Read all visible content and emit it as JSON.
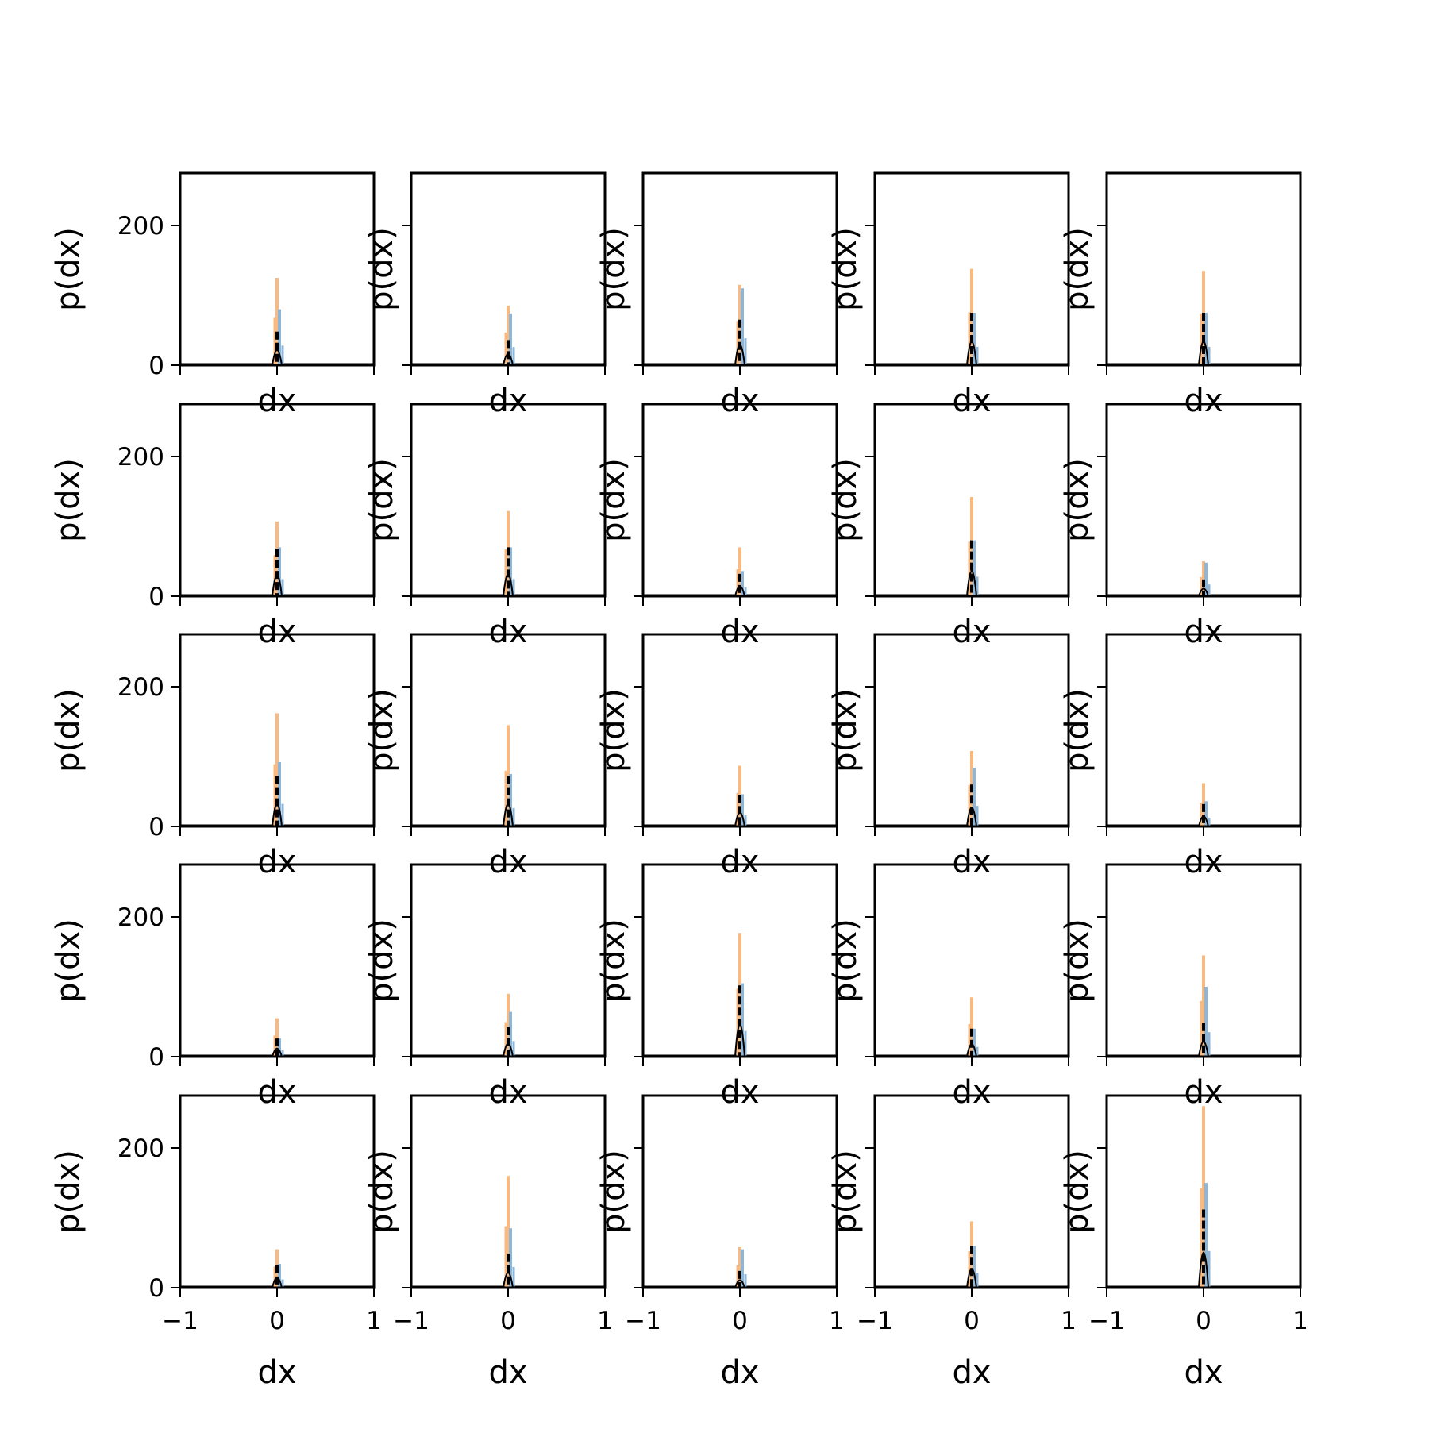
{
  "figure": {
    "rows": 5,
    "cols": 5,
    "colors": {
      "orange": "#F8BA80",
      "blue": "#8DB6D9",
      "black": "#000000"
    }
  },
  "chart_data": {
    "type": "histogram-grid",
    "xlabel": "dx",
    "ylabel": "p(dx)",
    "xlim": [
      -1,
      1
    ],
    "ylim": [
      0,
      275
    ],
    "xticks": [
      -1,
      0,
      1
    ],
    "xtick_labels": [
      "−1",
      "0",
      "1"
    ],
    "yticks": [
      0,
      200
    ],
    "ytick_labels": [
      "0",
      "200"
    ],
    "grid": false,
    "legend": "none",
    "panels": [
      {
        "row": 0,
        "col": 0,
        "peak_orange": 125,
        "peak_blue": 80,
        "peak_black": 48,
        "center": 0.0
      },
      {
        "row": 0,
        "col": 1,
        "peak_orange": 85,
        "peak_blue": 74,
        "peak_black": 36,
        "center": 0.0
      },
      {
        "row": 0,
        "col": 2,
        "peak_orange": 115,
        "peak_blue": 110,
        "peak_black": 65,
        "center": 0.0
      },
      {
        "row": 0,
        "col": 3,
        "peak_orange": 138,
        "peak_blue": 75,
        "peak_black": 75,
        "center": 0.0
      },
      {
        "row": 0,
        "col": 4,
        "peak_orange": 135,
        "peak_blue": 75,
        "peak_black": 75,
        "center": 0.0
      },
      {
        "row": 1,
        "col": 0,
        "peak_orange": 107,
        "peak_blue": 70,
        "peak_black": 68,
        "center": 0.0
      },
      {
        "row": 1,
        "col": 1,
        "peak_orange": 122,
        "peak_blue": 70,
        "peak_black": 70,
        "center": 0.0
      },
      {
        "row": 1,
        "col": 2,
        "peak_orange": 70,
        "peak_blue": 36,
        "peak_black": 32,
        "center": 0.0
      },
      {
        "row": 1,
        "col": 3,
        "peak_orange": 142,
        "peak_blue": 80,
        "peak_black": 80,
        "center": 0.0
      },
      {
        "row": 1,
        "col": 4,
        "peak_orange": 50,
        "peak_blue": 48,
        "peak_black": 24,
        "center": 0.0
      },
      {
        "row": 2,
        "col": 0,
        "peak_orange": 162,
        "peak_blue": 92,
        "peak_black": 72,
        "center": 0.0
      },
      {
        "row": 2,
        "col": 1,
        "peak_orange": 145,
        "peak_blue": 75,
        "peak_black": 72,
        "center": 0.0
      },
      {
        "row": 2,
        "col": 2,
        "peak_orange": 87,
        "peak_blue": 46,
        "peak_black": 45,
        "center": 0.0
      },
      {
        "row": 2,
        "col": 3,
        "peak_orange": 108,
        "peak_blue": 84,
        "peak_black": 60,
        "center": 0.0
      },
      {
        "row": 2,
        "col": 4,
        "peak_orange": 62,
        "peak_blue": 36,
        "peak_black": 32,
        "center": 0.0
      },
      {
        "row": 3,
        "col": 0,
        "peak_orange": 55,
        "peak_blue": 26,
        "peak_black": 26,
        "center": 0.0
      },
      {
        "row": 3,
        "col": 1,
        "peak_orange": 90,
        "peak_blue": 64,
        "peak_black": 42,
        "center": 0.0
      },
      {
        "row": 3,
        "col": 2,
        "peak_orange": 177,
        "peak_blue": 105,
        "peak_black": 102,
        "center": 0.0
      },
      {
        "row": 3,
        "col": 3,
        "peak_orange": 85,
        "peak_blue": 40,
        "peak_black": 40,
        "center": 0.0
      },
      {
        "row": 3,
        "col": 4,
        "peak_orange": 145,
        "peak_blue": 100,
        "peak_black": 48,
        "center": 0.0
      },
      {
        "row": 4,
        "col": 0,
        "peak_orange": 55,
        "peak_blue": 34,
        "peak_black": 32,
        "center": 0.0
      },
      {
        "row": 4,
        "col": 1,
        "peak_orange": 160,
        "peak_blue": 85,
        "peak_black": 48,
        "center": 0.0
      },
      {
        "row": 4,
        "col": 2,
        "peak_orange": 58,
        "peak_blue": 55,
        "peak_black": 24,
        "center": 0.0
      },
      {
        "row": 4,
        "col": 3,
        "peak_orange": 95,
        "peak_blue": 60,
        "peak_black": 60,
        "center": 0.0
      },
      {
        "row": 4,
        "col": 4,
        "peak_orange": 260,
        "peak_blue": 150,
        "peak_black": 112,
        "center": 0.0
      }
    ]
  }
}
